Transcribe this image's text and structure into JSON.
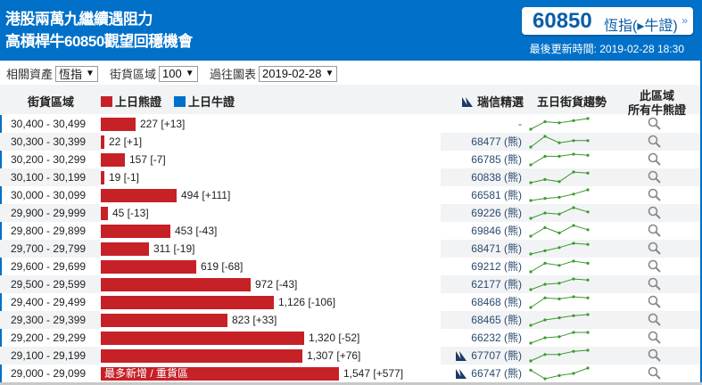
{
  "header": {
    "title_line1": "港股兩萬九繼續遇阻力",
    "title_line2": "高槓桿牛60850觀望回穩機會",
    "product_code": "60850",
    "product_name": "恆指(▸牛證)",
    "arrow": "»",
    "updated": "最後更新時間: 2019-02-28 18:30"
  },
  "controls": {
    "asset_label": "相關資產",
    "asset_value": "恆指",
    "range_label": "街貨區域",
    "range_value": "100",
    "history_label": "過往圖表",
    "history_value": "2019-02-28"
  },
  "table_header": {
    "range": "街貨區域",
    "bear_legend": "上日熊證",
    "bull_legend": "上日牛證",
    "cs_pick": "瑞信精選",
    "trend": "五日街貨趨勢",
    "all_line1": "此區域",
    "all_line2": "所有牛熊證"
  },
  "colors": {
    "brand": "#0070c8",
    "bear": "#c62127",
    "bull": "#0070c8",
    "spark": "#3a9a2e"
  },
  "top_label": "最多新增 / 重貨區",
  "rows": [
    {
      "range": "30,400 - 30,499",
      "value": 227,
      "label": "227 [+13]",
      "pick": "-",
      "cs_icon": false,
      "trend": [
        0,
        7,
        6,
        8,
        10
      ]
    },
    {
      "range": "30,300 - 30,399",
      "value": 22,
      "label": "22 [+1]",
      "pick": "68477 (熊)",
      "cs_icon": false,
      "trend": [
        0,
        10,
        4,
        6,
        6
      ]
    },
    {
      "range": "30,200 - 30,299",
      "value": 157,
      "label": "157 [-7]",
      "pick": "66785 (熊)",
      "cs_icon": false,
      "trend": [
        0,
        8,
        8,
        10,
        9
      ]
    },
    {
      "range": "30,100 - 30,199",
      "value": 19,
      "label": "19 [-1]",
      "pick": "60838 (熊)",
      "cs_icon": false,
      "trend": [
        0,
        3,
        1,
        10,
        9
      ]
    },
    {
      "range": "30,000 - 30,099",
      "value": 494,
      "label": "494 [+111]",
      "pick": "66581 (熊)",
      "cs_icon": false,
      "trend": [
        0,
        2,
        3,
        6,
        10
      ]
    },
    {
      "range": "29,900 - 29,999",
      "value": 45,
      "label": "45 [-13]",
      "pick": "69226 (熊)",
      "cs_icon": false,
      "trend": [
        0,
        5,
        4,
        10,
        6
      ]
    },
    {
      "range": "29,800 - 29,899",
      "value": 453,
      "label": "453 [-43]",
      "pick": "69846 (熊)",
      "cs_icon": false,
      "trend": [
        0,
        8,
        3,
        10,
        6
      ]
    },
    {
      "range": "29,700 - 29,799",
      "value": 311,
      "label": "311 [-19]",
      "pick": "68471 (熊)",
      "cs_icon": false,
      "trend": [
        0,
        3,
        6,
        10,
        9
      ]
    },
    {
      "range": "29,600 - 29,699",
      "value": 619,
      "label": "619 [-68]",
      "pick": "69212 (熊)",
      "cs_icon": false,
      "trend": [
        0,
        8,
        6,
        10,
        8
      ]
    },
    {
      "range": "29,500 - 29,599",
      "value": 972,
      "label": "972 [-43]",
      "pick": "62177 (熊)",
      "cs_icon": false,
      "trend": [
        0,
        5,
        6,
        10,
        9
      ]
    },
    {
      "range": "29,400 - 29,499",
      "value": 1126,
      "label": "1,126 [-106]",
      "pick": "68468 (熊)",
      "cs_icon": false,
      "trend": [
        0,
        9,
        8,
        10,
        9
      ]
    },
    {
      "range": "29,300 - 29,399",
      "value": 823,
      "label": "823 [+33]",
      "pick": "68465 (熊)",
      "cs_icon": false,
      "trend": [
        0,
        5,
        7,
        9,
        10
      ]
    },
    {
      "range": "29,200 - 29,299",
      "value": 1320,
      "label": "1,320 [-52]",
      "pick": "66232 (熊)",
      "cs_icon": false,
      "trend": [
        0,
        5,
        6,
        10,
        10
      ]
    },
    {
      "range": "29,100 - 29,199",
      "value": 1307,
      "label": "1,307 [+76]",
      "pick": "67707 (熊)",
      "cs_icon": true,
      "trend": [
        0,
        6,
        6,
        9,
        10
      ]
    },
    {
      "range": "29,000 - 29,099",
      "value": 1547,
      "label": "1,547 [+577]",
      "pick": "66747 (熊)",
      "cs_icon": true,
      "trend": [
        8,
        0,
        3,
        5,
        10
      ],
      "top": true
    }
  ]
}
